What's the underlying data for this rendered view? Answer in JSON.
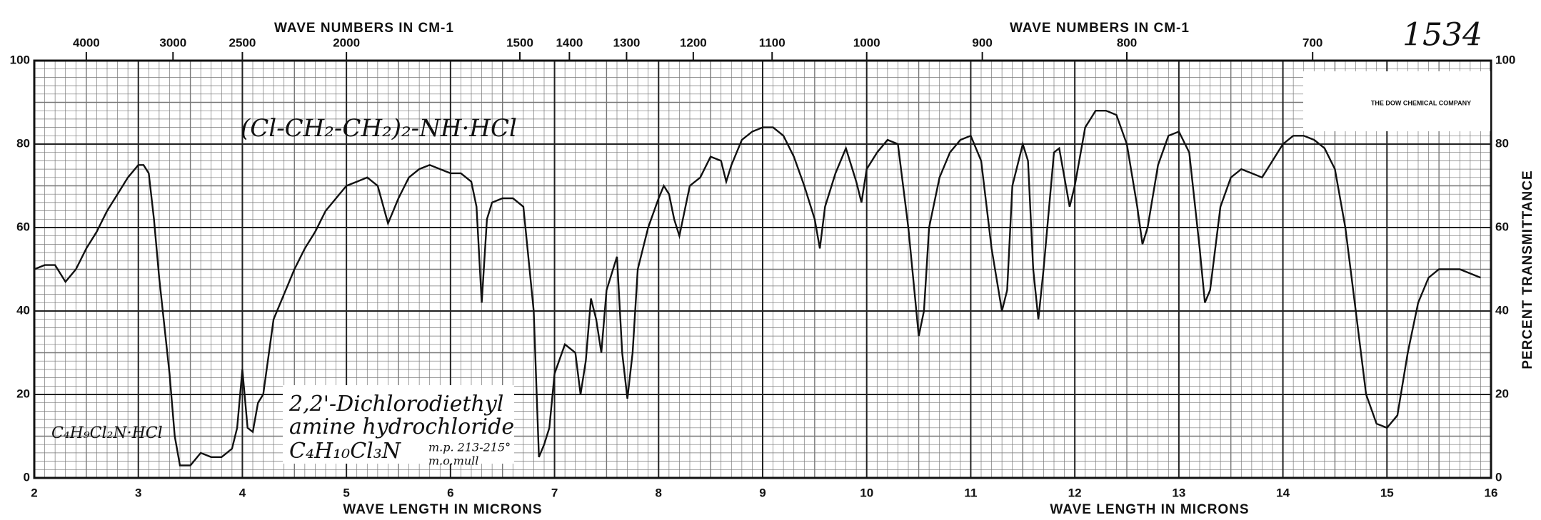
{
  "chart_data": {
    "type": "line",
    "title": "1534",
    "x_label": "WAVE LENGTH IN MICRONS",
    "x2_label": "WAVE NUMBERS IN CM-1",
    "y_label": "PERCENT TRANSMITTANCE",
    "annotations": [
      "(Cl-CH₂-CH₂)₂-NH·HCl",
      "2,2'-Dichlorodiethyl",
      "amine hydrochloride",
      "C₄H₁₀Cl₃N",
      "m.p. 213-215°",
      "m.o.mull",
      "C₄H₉Cl₂N·HCl",
      "THE DOW CHEMICAL COMPANY"
    ],
    "xlim": [
      2,
      16
    ],
    "xticks": [
      2,
      3,
      4,
      5,
      6,
      7,
      8,
      9,
      10,
      11,
      12,
      13,
      14,
      15,
      16
    ],
    "x2ticks": [
      4000,
      3000,
      2500,
      2000,
      1500,
      1400,
      1300,
      1200,
      1100,
      1000,
      900,
      800,
      700
    ],
    "ylim": [
      0,
      100
    ],
    "yticks": [
      0,
      20,
      40,
      60,
      80,
      100
    ],
    "grid": true,
    "x": [
      2.0,
      2.1,
      2.2,
      2.3,
      2.4,
      2.5,
      2.6,
      2.7,
      2.8,
      2.9,
      3.0,
      3.05,
      3.1,
      3.15,
      3.2,
      3.3,
      3.35,
      3.4,
      3.5,
      3.6,
      3.7,
      3.8,
      3.9,
      3.95,
      4.0,
      4.05,
      4.1,
      4.15,
      4.2,
      4.3,
      4.4,
      4.5,
      4.6,
      4.7,
      4.8,
      4.9,
      5.0,
      5.1,
      5.2,
      5.3,
      5.4,
      5.5,
      5.6,
      5.7,
      5.8,
      5.9,
      6.0,
      6.1,
      6.2,
      6.25,
      6.3,
      6.35,
      6.4,
      6.5,
      6.6,
      6.7,
      6.8,
      6.85,
      6.9,
      6.95,
      7.0,
      7.1,
      7.2,
      7.25,
      7.3,
      7.35,
      7.4,
      7.45,
      7.5,
      7.6,
      7.65,
      7.7,
      7.75,
      7.8,
      7.9,
      8.0,
      8.05,
      8.1,
      8.15,
      8.2,
      8.3,
      8.4,
      8.5,
      8.6,
      8.65,
      8.7,
      8.8,
      8.9,
      9.0,
      9.1,
      9.2,
      9.3,
      9.4,
      9.5,
      9.55,
      9.6,
      9.7,
      9.8,
      9.9,
      9.95,
      10.0,
      10.1,
      10.2,
      10.3,
      10.4,
      10.5,
      10.55,
      10.6,
      10.7,
      10.8,
      10.9,
      11.0,
      11.1,
      11.2,
      11.3,
      11.35,
      11.4,
      11.5,
      11.55,
      11.6,
      11.65,
      11.7,
      11.8,
      11.85,
      11.9,
      11.95,
      12.0,
      12.1,
      12.2,
      12.3,
      12.4,
      12.5,
      12.6,
      12.65,
      12.7,
      12.8,
      12.9,
      13.0,
      13.1,
      13.2,
      13.25,
      13.3,
      13.4,
      13.5,
      13.6,
      13.7,
      13.8,
      13.9,
      14.0,
      14.1,
      14.2,
      14.3,
      14.4,
      14.5,
      14.6,
      14.7,
      14.8,
      14.9,
      15.0,
      15.1,
      15.2,
      15.3,
      15.4,
      15.5,
      15.6,
      15.7,
      15.8,
      15.9
    ],
    "series": [
      {
        "name": "2,2'-Dichlorodiethyl amine hydrochloride",
        "color": "#111111",
        "values": [
          50,
          51,
          51,
          47,
          50,
          55,
          59,
          64,
          68,
          72,
          75,
          75,
          73,
          62,
          48,
          25,
          10,
          3,
          3,
          6,
          5,
          5,
          7,
          12,
          26,
          12,
          11,
          18,
          20,
          38,
          44,
          50,
          55,
          59,
          64,
          67,
          70,
          71,
          72,
          70,
          61,
          67,
          72,
          74,
          75,
          74,
          73,
          73,
          71,
          65,
          42,
          62,
          66,
          67,
          67,
          65,
          40,
          5,
          8,
          12,
          25,
          32,
          30,
          20,
          28,
          43,
          38,
          30,
          45,
          53,
          30,
          19,
          30,
          50,
          60,
          67,
          70,
          68,
          62,
          58,
          70,
          72,
          77,
          76,
          71,
          75,
          81,
          83,
          84,
          84,
          82,
          77,
          70,
          62,
          55,
          65,
          73,
          79,
          71,
          66,
          74,
          78,
          81,
          80,
          60,
          34,
          40,
          60,
          72,
          78,
          81,
          82,
          76,
          55,
          40,
          45,
          70,
          80,
          76,
          50,
          38,
          50,
          78,
          79,
          72,
          65,
          70,
          84,
          88,
          88,
          87,
          80,
          65,
          56,
          60,
          75,
          82,
          83,
          78,
          55,
          42,
          45,
          65,
          72,
          74,
          73,
          72,
          76,
          80,
          82,
          82,
          81,
          79,
          74,
          60,
          40,
          20,
          13,
          12,
          15,
          30,
          42,
          48,
          50,
          50,
          50,
          49,
          48
        ]
      }
    ]
  }
}
